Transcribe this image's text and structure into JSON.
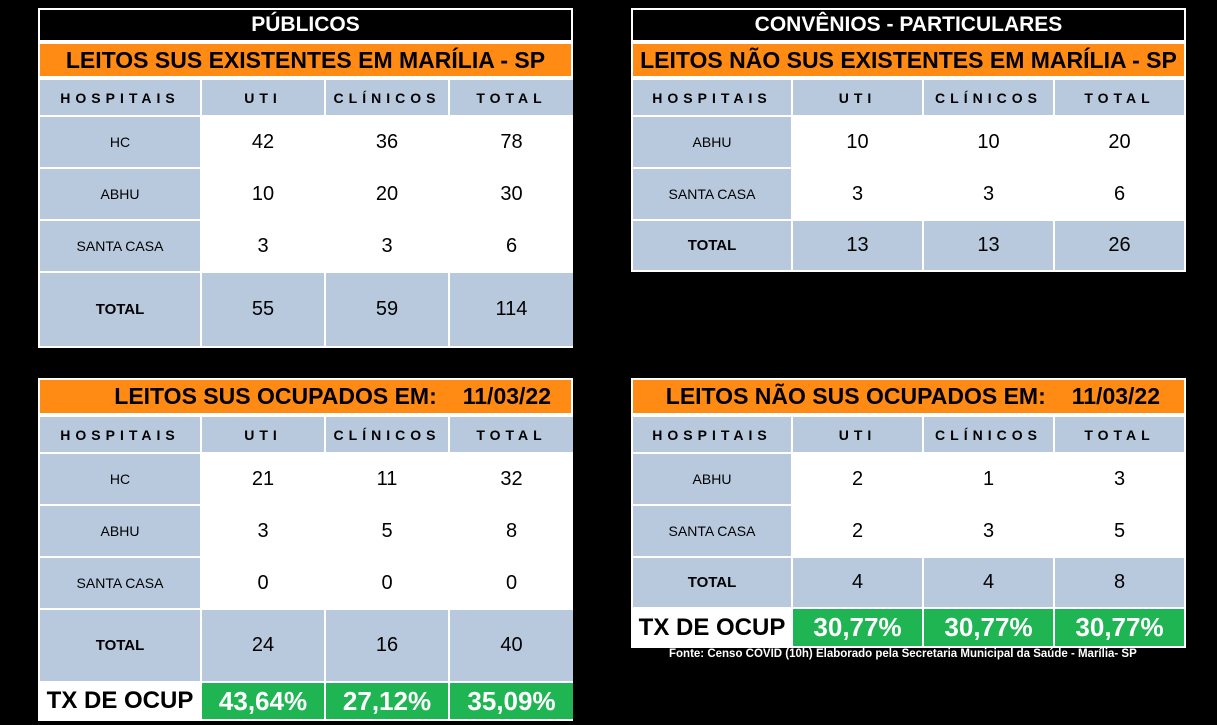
{
  "left": {
    "section_title": "PÚBLICOS",
    "existing": {
      "title": "LEITOS SUS EXISTENTES EM MARÍLIA - SP",
      "headers": [
        "HOSPITAIS",
        "UTI",
        "CLÍNICOS",
        "TOTAL"
      ],
      "rows": [
        [
          "HC",
          "42",
          "36",
          "78"
        ],
        [
          "ABHU",
          "10",
          "20",
          "30"
        ],
        [
          "SANTA CASA",
          "3",
          "3",
          "6"
        ],
        [
          "TOTAL",
          "55",
          "59",
          "114"
        ]
      ]
    },
    "occupied": {
      "title": "LEITOS SUS OCUPADOS EM:",
      "date": "11/03/22",
      "headers": [
        "HOSPITAIS",
        "UTI",
        "CLÍNICOS",
        "TOTAL"
      ],
      "rows": [
        [
          "HC",
          "21",
          "11",
          "32"
        ],
        [
          "ABHU",
          "3",
          "5",
          "8"
        ],
        [
          "SANTA CASA",
          "0",
          "0",
          "0"
        ],
        [
          "TOTAL",
          "24",
          "16",
          "40"
        ]
      ],
      "occupancy": [
        "TX DE OCUP",
        "43,64%",
        "27,12%",
        "35,09%"
      ]
    }
  },
  "right": {
    "section_title": "CONVÊNIOS - PARTICULARES",
    "existing": {
      "title": "LEITOS NÃO SUS EXISTENTES EM MARÍLIA - SP",
      "headers": [
        "HOSPITAIS",
        "UTI",
        "CLÍNICOS",
        "TOTAL"
      ],
      "rows": [
        [
          "ABHU",
          "10",
          "10",
          "20"
        ],
        [
          "SANTA CASA",
          "3",
          "3",
          "6"
        ],
        [
          "TOTAL",
          "13",
          "13",
          "26"
        ]
      ]
    },
    "occupied": {
      "title": "LEITOS NÃO SUS OCUPADOS EM:",
      "date": "11/03/22",
      "headers": [
        "HOSPITAIS",
        "UTI",
        "CLÍNICOS",
        "TOTAL"
      ],
      "rows": [
        [
          "ABHU",
          "2",
          "1",
          "3"
        ],
        [
          "SANTA CASA",
          "2",
          "3",
          "5"
        ],
        [
          "TOTAL",
          "4",
          "4",
          "8"
        ]
      ],
      "occupancy": [
        "TX DE OCUP",
        "30,77%",
        "30,77%",
        "30,77%"
      ]
    }
  },
  "footnote": "Fonte: Censo COVID (10h) Elaborado pela Secretaria Municipal da Saúde - Marília- SP",
  "colors": {
    "header_fill": "#b8c9de",
    "title_fill": "#ff8a14",
    "occupancy_fill": "#1fb553"
  }
}
